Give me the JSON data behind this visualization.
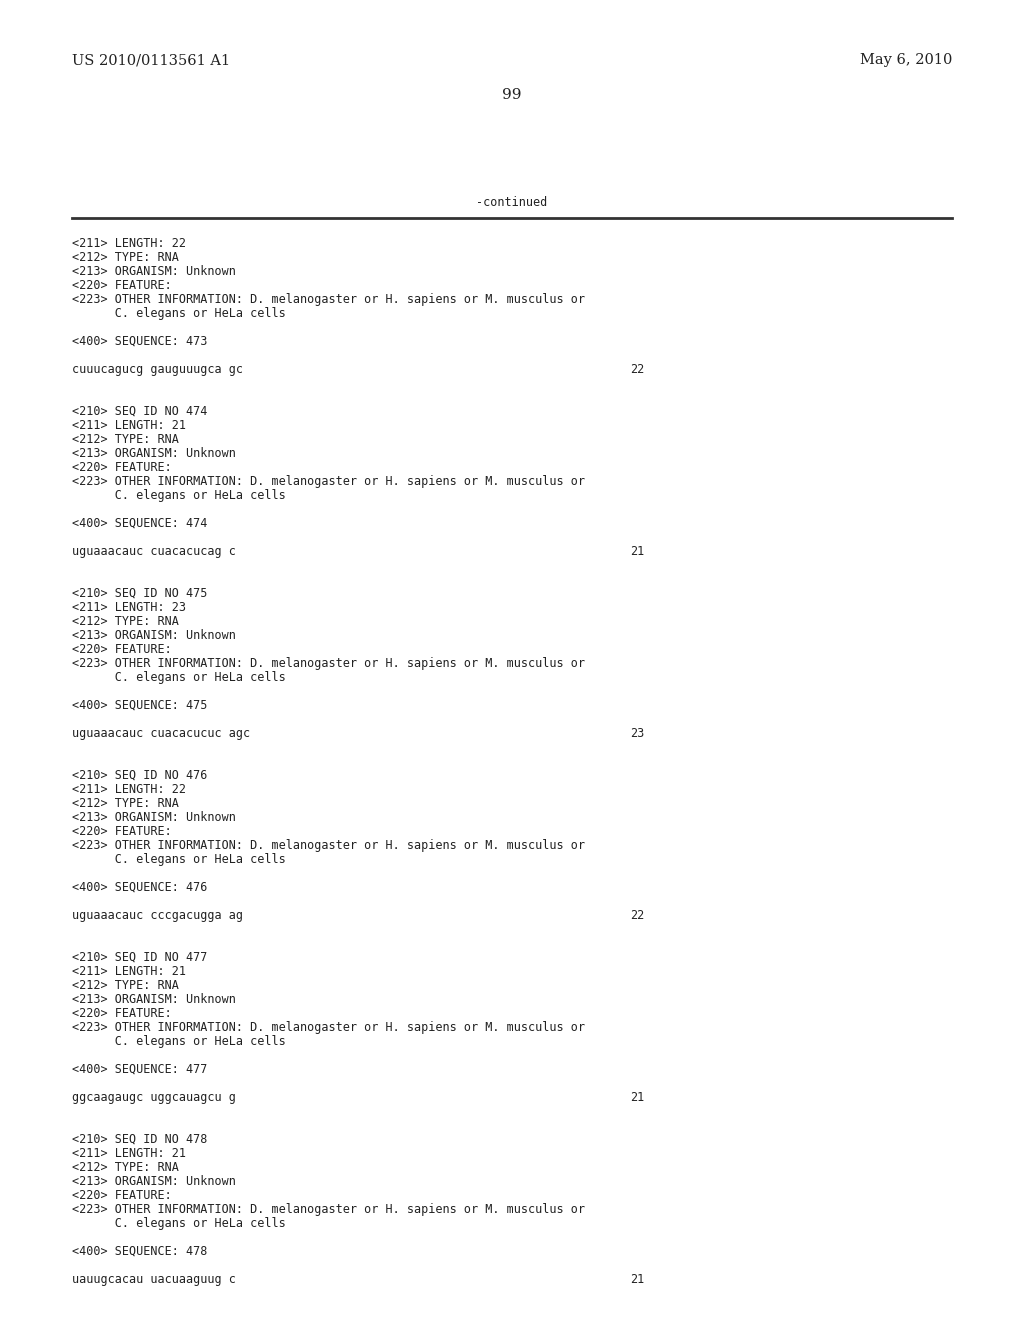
{
  "background_color": "#ffffff",
  "header_left": "US 2010/0113561 A1",
  "header_right": "May 6, 2010",
  "page_number": "99",
  "continued_label": "-continued",
  "monospace_fontsize": 8.5,
  "header_fontsize": 10.5,
  "page_num_fontsize": 11,
  "figwidth": 10.24,
  "figheight": 13.2,
  "dpi": 100,
  "content_lines": [
    {
      "text": "<211> LENGTH: 22",
      "blank": false
    },
    {
      "text": "<212> TYPE: RNA",
      "blank": false
    },
    {
      "text": "<213> ORGANISM: Unknown",
      "blank": false
    },
    {
      "text": "<220> FEATURE:",
      "blank": false
    },
    {
      "text": "<223> OTHER INFORMATION: D. melanogaster or H. sapiens or M. musculus or",
      "blank": false
    },
    {
      "text": "      C. elegans or HeLa cells",
      "blank": false
    },
    {
      "text": "",
      "blank": true
    },
    {
      "text": "<400> SEQUENCE: 473",
      "blank": false
    },
    {
      "text": "",
      "blank": true
    },
    {
      "text": "cuuucagucg gauguuugca gc",
      "blank": false,
      "num": "22"
    },
    {
      "text": "",
      "blank": true
    },
    {
      "text": "",
      "blank": true
    },
    {
      "text": "<210> SEQ ID NO 474",
      "blank": false
    },
    {
      "text": "<211> LENGTH: 21",
      "blank": false
    },
    {
      "text": "<212> TYPE: RNA",
      "blank": false
    },
    {
      "text": "<213> ORGANISM: Unknown",
      "blank": false
    },
    {
      "text": "<220> FEATURE:",
      "blank": false
    },
    {
      "text": "<223> OTHER INFORMATION: D. melanogaster or H. sapiens or M. musculus or",
      "blank": false
    },
    {
      "text": "      C. elegans or HeLa cells",
      "blank": false
    },
    {
      "text": "",
      "blank": true
    },
    {
      "text": "<400> SEQUENCE: 474",
      "blank": false
    },
    {
      "text": "",
      "blank": true
    },
    {
      "text": "uguaaacauc cuacacucag c",
      "blank": false,
      "num": "21"
    },
    {
      "text": "",
      "blank": true
    },
    {
      "text": "",
      "blank": true
    },
    {
      "text": "<210> SEQ ID NO 475",
      "blank": false
    },
    {
      "text": "<211> LENGTH: 23",
      "blank": false
    },
    {
      "text": "<212> TYPE: RNA",
      "blank": false
    },
    {
      "text": "<213> ORGANISM: Unknown",
      "blank": false
    },
    {
      "text": "<220> FEATURE:",
      "blank": false
    },
    {
      "text": "<223> OTHER INFORMATION: D. melanogaster or H. sapiens or M. musculus or",
      "blank": false
    },
    {
      "text": "      C. elegans or HeLa cells",
      "blank": false
    },
    {
      "text": "",
      "blank": true
    },
    {
      "text": "<400> SEQUENCE: 475",
      "blank": false
    },
    {
      "text": "",
      "blank": true
    },
    {
      "text": "uguaaacauc cuacacucuc agc",
      "blank": false,
      "num": "23"
    },
    {
      "text": "",
      "blank": true
    },
    {
      "text": "",
      "blank": true
    },
    {
      "text": "<210> SEQ ID NO 476",
      "blank": false
    },
    {
      "text": "<211> LENGTH: 22",
      "blank": false
    },
    {
      "text": "<212> TYPE: RNA",
      "blank": false
    },
    {
      "text": "<213> ORGANISM: Unknown",
      "blank": false
    },
    {
      "text": "<220> FEATURE:",
      "blank": false
    },
    {
      "text": "<223> OTHER INFORMATION: D. melanogaster or H. sapiens or M. musculus or",
      "blank": false
    },
    {
      "text": "      C. elegans or HeLa cells",
      "blank": false
    },
    {
      "text": "",
      "blank": true
    },
    {
      "text": "<400> SEQUENCE: 476",
      "blank": false
    },
    {
      "text": "",
      "blank": true
    },
    {
      "text": "uguaaacauc cccgacugga ag",
      "blank": false,
      "num": "22"
    },
    {
      "text": "",
      "blank": true
    },
    {
      "text": "",
      "blank": true
    },
    {
      "text": "<210> SEQ ID NO 477",
      "blank": false
    },
    {
      "text": "<211> LENGTH: 21",
      "blank": false
    },
    {
      "text": "<212> TYPE: RNA",
      "blank": false
    },
    {
      "text": "<213> ORGANISM: Unknown",
      "blank": false
    },
    {
      "text": "<220> FEATURE:",
      "blank": false
    },
    {
      "text": "<223> OTHER INFORMATION: D. melanogaster or H. sapiens or M. musculus or",
      "blank": false
    },
    {
      "text": "      C. elegans or HeLa cells",
      "blank": false
    },
    {
      "text": "",
      "blank": true
    },
    {
      "text": "<400> SEQUENCE: 477",
      "blank": false
    },
    {
      "text": "",
      "blank": true
    },
    {
      "text": "ggcaagaugc uggcauagcu g",
      "blank": false,
      "num": "21"
    },
    {
      "text": "",
      "blank": true
    },
    {
      "text": "",
      "blank": true
    },
    {
      "text": "<210> SEQ ID NO 478",
      "blank": false
    },
    {
      "text": "<211> LENGTH: 21",
      "blank": false
    },
    {
      "text": "<212> TYPE: RNA",
      "blank": false
    },
    {
      "text": "<213> ORGANISM: Unknown",
      "blank": false
    },
    {
      "text": "<220> FEATURE:",
      "blank": false
    },
    {
      "text": "<223> OTHER INFORMATION: D. melanogaster or H. sapiens or M. musculus or",
      "blank": false
    },
    {
      "text": "      C. elegans or HeLa cells",
      "blank": false
    },
    {
      "text": "",
      "blank": true
    },
    {
      "text": "<400> SEQUENCE: 478",
      "blank": false
    },
    {
      "text": "",
      "blank": true
    },
    {
      "text": "uauugcacau uacuaaguug c",
      "blank": false,
      "num": "21"
    }
  ]
}
